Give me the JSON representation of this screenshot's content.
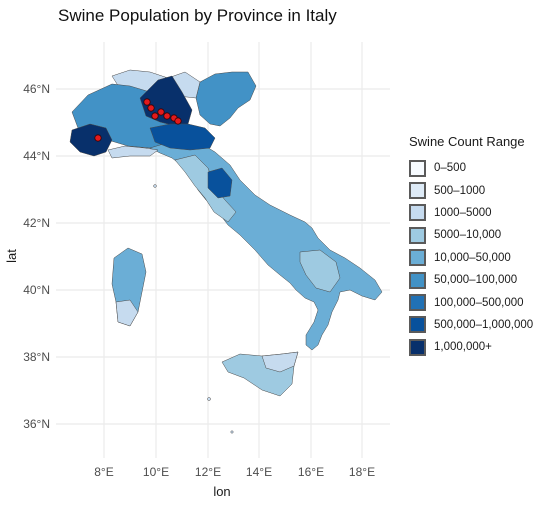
{
  "title": "Swine Population by Province in Italy",
  "x_axis": {
    "label": "lon",
    "ticks": [
      "8°E",
      "10°E",
      "12°E",
      "14°E",
      "16°E",
      "18°E"
    ]
  },
  "y_axis": {
    "label": "lat",
    "ticks": [
      "36°N",
      "38°N",
      "40°N",
      "42°N",
      "44°N",
      "46°N"
    ]
  },
  "legend": {
    "title": "Swine Count Range",
    "items": [
      {
        "label": "0–500",
        "color": "#f7fbff"
      },
      {
        "label": "500–1000",
        "color": "#deebf7"
      },
      {
        "label": "1000–5000",
        "color": "#c6dbef"
      },
      {
        "label": "5000–10,000",
        "color": "#9ecae1"
      },
      {
        "label": "10,000–50,000",
        "color": "#6baed6"
      },
      {
        "label": "50,000–100,000",
        "color": "#4292c6"
      },
      {
        "label": "100,000–500,000",
        "color": "#2171b5"
      },
      {
        "label": "500,000–1,000,000",
        "color": "#08519c"
      },
      {
        "label": "1,000,000+",
        "color": "#08306b"
      }
    ]
  },
  "markers": {
    "color": "#e31a1c",
    "count": 8
  }
}
